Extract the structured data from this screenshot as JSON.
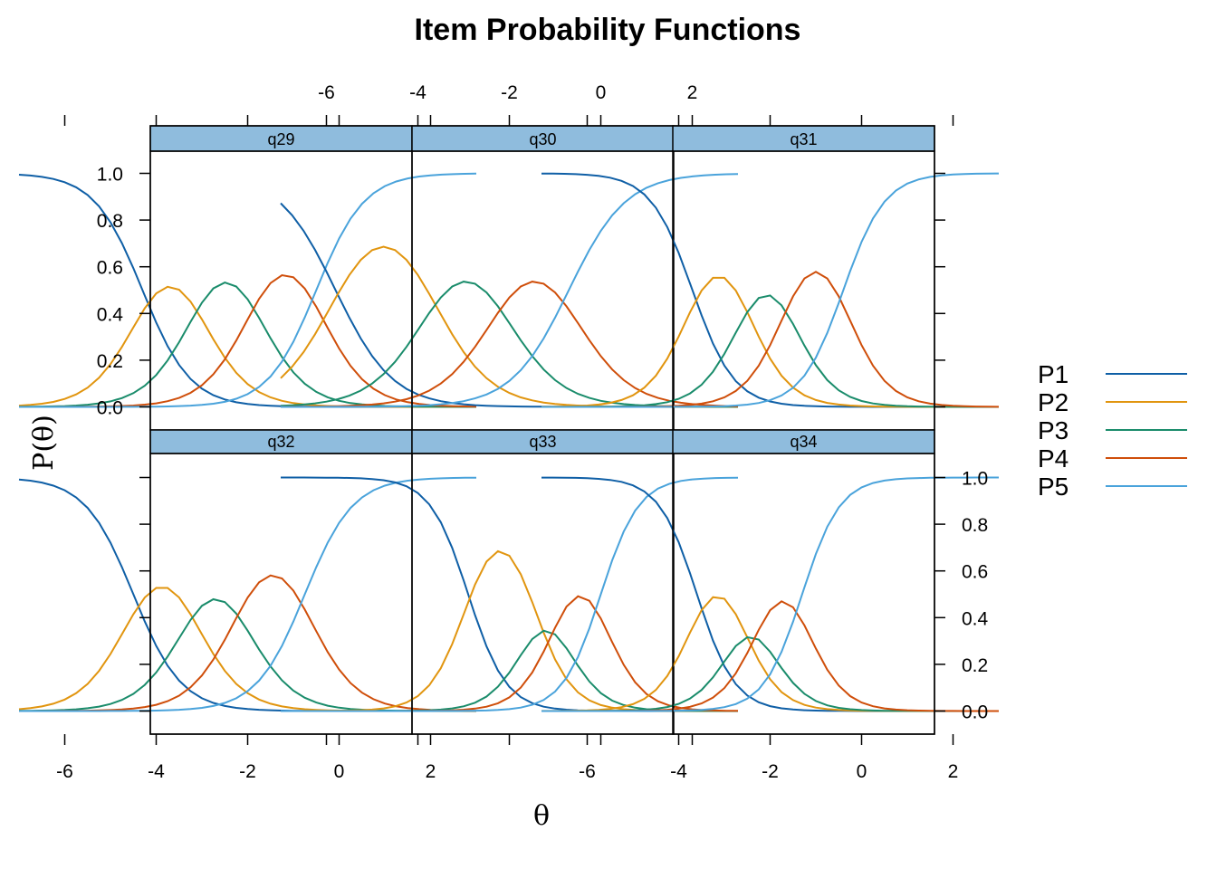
{
  "chart_data": {
    "type": "line",
    "title": "Item Probability Functions",
    "xlabel": "θ",
    "ylabel": "P(θ)",
    "xlim": [
      -7.0,
      3.0
    ],
    "ylim": [
      0,
      1
    ],
    "x_ticks": [
      -6,
      -4,
      -2,
      0,
      2
    ],
    "y_ticks": [
      0.0,
      0.2,
      0.4,
      0.6,
      0.8,
      1.0
    ],
    "x_tick_labels": [
      "-6",
      "-4",
      "-2",
      "0",
      "2"
    ],
    "y_tick_labels": [
      "0.0",
      "0.2",
      "0.4",
      "0.6",
      "0.8",
      "1.0"
    ],
    "x_step": 0.25,
    "legend_position": "right",
    "series_colors": [
      "#0F5FA6",
      "#E1950F",
      "#1A8C6B",
      "#CF4E0A",
      "#4AA3DB"
    ],
    "series": [
      {
        "name": "P1"
      },
      {
        "name": "P2"
      },
      {
        "name": "P3"
      },
      {
        "name": "P4"
      },
      {
        "name": "P5"
      }
    ],
    "panels": [
      {
        "label": "q29",
        "a": 1.9,
        "b": [
          -4.3,
          -3.1,
          -1.85,
          -0.5
        ]
      },
      {
        "label": "q30",
        "a": 1.6,
        "b": [
          -5.8,
          -3.7,
          -2.2,
          -0.7
        ]
      },
      {
        "label": "q31",
        "a": 2.2,
        "b": [
          -3.7,
          -2.55,
          -1.6,
          -0.4
        ]
      },
      {
        "label": "q32",
        "a": 1.9,
        "b": [
          -4.5,
          -3.25,
          -2.15,
          -0.75
        ]
      },
      {
        "label": "q33",
        "a": 2.4,
        "b": [
          -2.9,
          -1.5,
          -0.9,
          0.0
        ]
      },
      {
        "label": "q34",
        "a": 2.4,
        "b": [
          -3.6,
          -2.7,
          -2.15,
          -1.3
        ]
      }
    ]
  }
}
